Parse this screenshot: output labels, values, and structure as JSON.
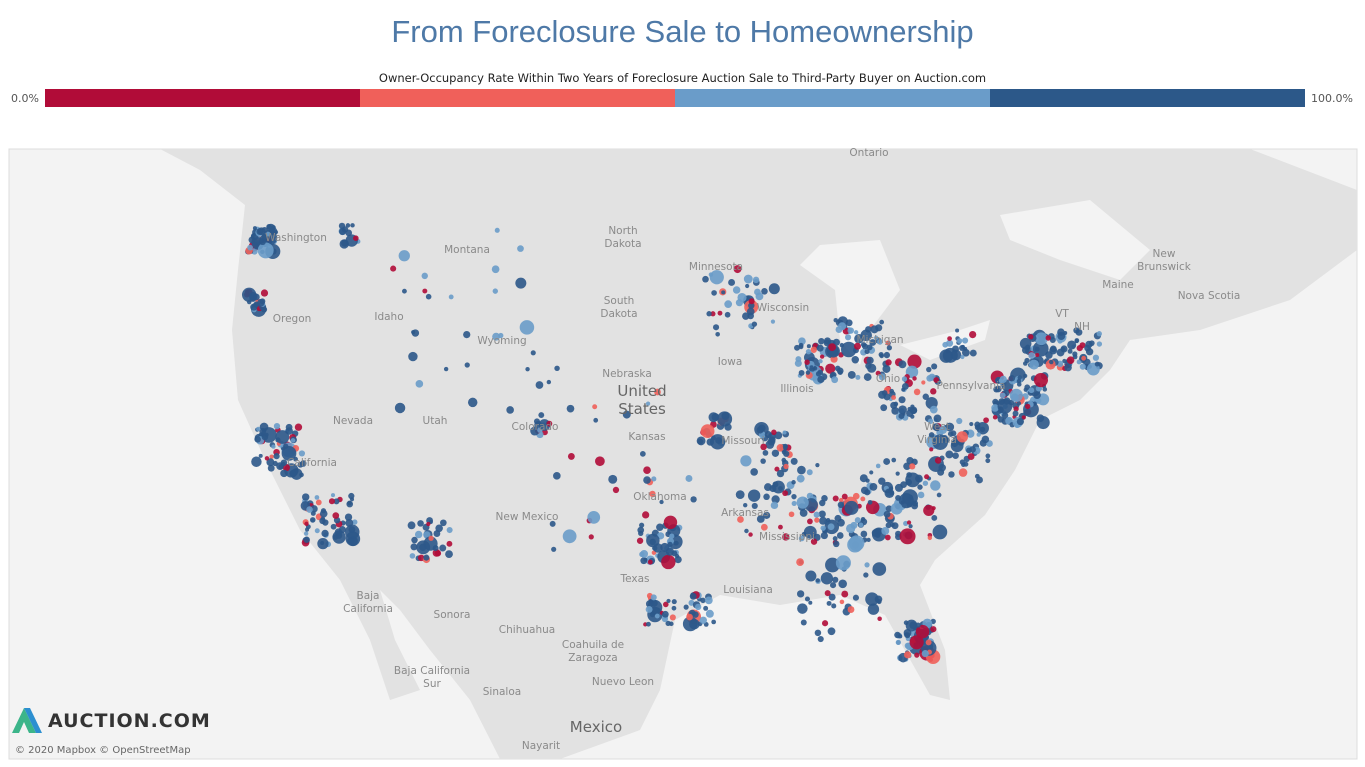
{
  "header": {
    "title": "From Foreclosure Sale to Homeownership"
  },
  "legend": {
    "title": "Owner-Occupancy Rate Within Two Years of Foreclosure Auction Sale to Third-Party Buyer on Auction.com",
    "min_label": "0.0%",
    "max_label": "100.0%",
    "colors": [
      "#b10c38",
      "#f0605a",
      "#6a9cc9",
      "#2c5889"
    ]
  },
  "map": {
    "labels": [
      [
        "Ontario"
      ],
      [
        "North",
        "Dakota"
      ],
      [
        "Montana"
      ],
      [
        "Minnesota"
      ],
      [
        "New",
        "Brunswick"
      ],
      [
        "Nova Scotia"
      ],
      [
        "Maine"
      ],
      [
        "South",
        "Dakota"
      ],
      [
        "Washington"
      ],
      [
        "Idaho"
      ],
      [
        "Oregon"
      ],
      [
        "Wyoming"
      ],
      [
        "Wisconsin"
      ],
      [
        "VT"
      ],
      [
        "NH"
      ],
      [
        "Nebraska"
      ],
      [
        "United",
        "States"
      ],
      [
        "Iowa"
      ],
      [
        "Illinois"
      ],
      [
        "Michigan"
      ],
      [
        "Pennsylvania"
      ],
      [
        "Nevada"
      ],
      [
        "Utah"
      ],
      [
        "Colorado"
      ],
      [
        "Kansas"
      ],
      [
        "Missouri"
      ],
      [
        "West",
        "Virginia"
      ],
      [
        "Ohio"
      ],
      [
        "California"
      ],
      [
        "Oklahoma"
      ],
      [
        "Arkansas"
      ],
      [
        "New Mexico"
      ],
      [
        "Mississippi"
      ],
      [
        "Texas"
      ],
      [
        "Louisiana"
      ],
      [
        "Baja",
        "California"
      ],
      [
        "Sonora"
      ],
      [
        "Chihuahua"
      ],
      [
        "Coahuila de",
        "Zaragoza"
      ],
      [
        "Baja California",
        "Sur"
      ],
      [
        "Nuevo Leon"
      ],
      [
        "Sinaloa"
      ],
      [
        "Mexico"
      ],
      [
        "Nayarit"
      ]
    ]
  },
  "logo": "AUCTION.COM",
  "attribution": "© 2020 Mapbox © OpenStreetMap"
}
